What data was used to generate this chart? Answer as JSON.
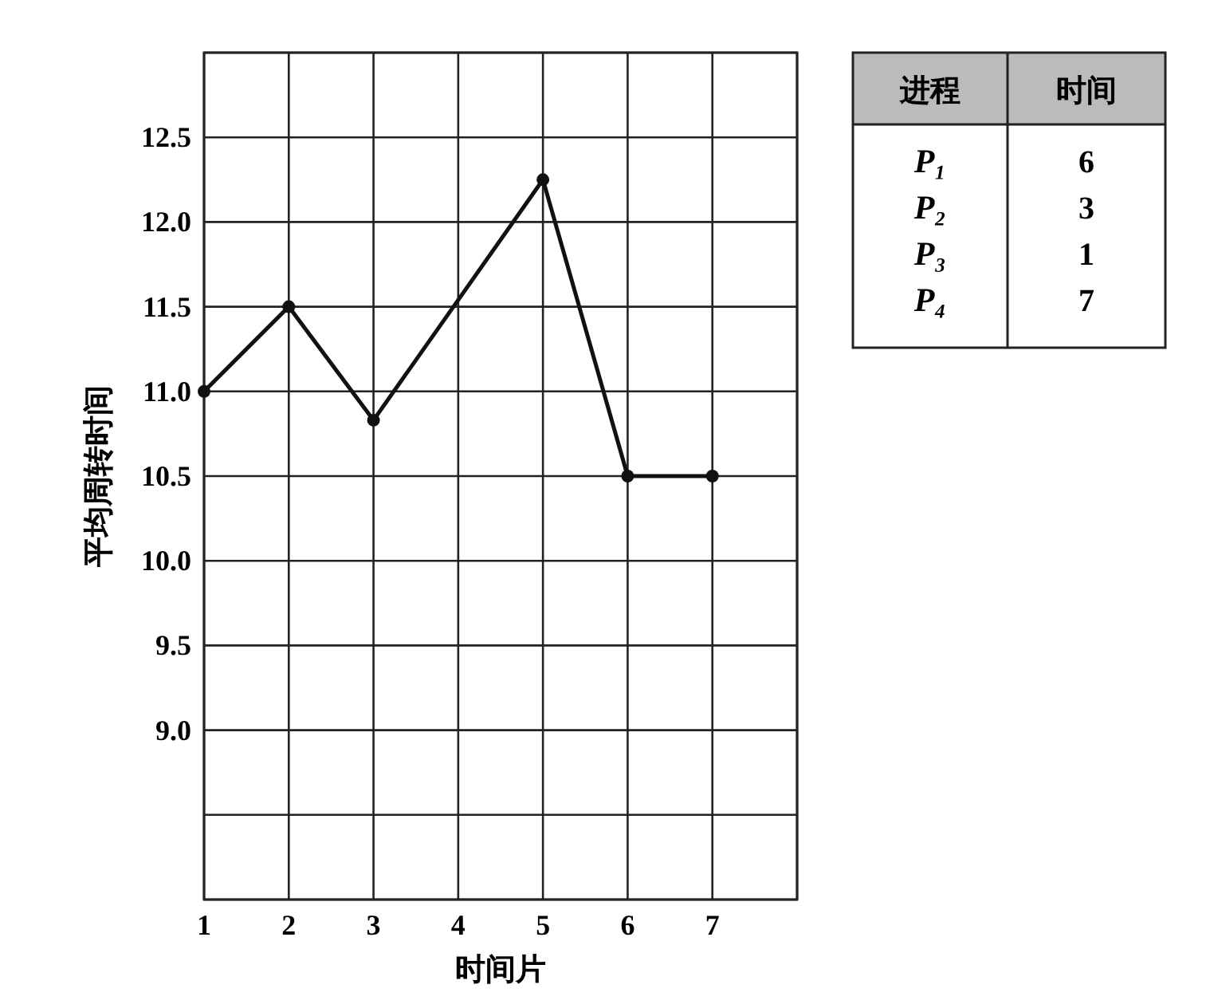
{
  "chart_data": [
    {
      "type": "line",
      "xlabel": "时间片",
      "ylabel": "平均周转时间",
      "x": [
        1,
        2,
        3,
        5,
        6,
        7
      ],
      "series": [
        {
          "color": "#111111",
          "values": [
            11.0,
            11.5,
            10.83,
            12.25,
            10.5,
            10.5
          ]
        }
      ],
      "xlim": [
        1,
        8
      ],
      "xticks": [
        1,
        2,
        3,
        4,
        5,
        6,
        7,
        {
          "value": 8,
          "label": null
        }
      ],
      "ylim": [
        8,
        13
      ],
      "yticks": [
        {
          "value": 8,
          "label": null
        },
        {
          "value": 8.5,
          "label": null
        },
        {
          "value": 9,
          "label": "9.0"
        },
        {
          "value": 9.5,
          "label": "9.5"
        },
        {
          "value": 10,
          "label": "10.0"
        },
        {
          "value": 10.5,
          "label": "10.5"
        },
        {
          "value": 11,
          "label": "11.0"
        },
        {
          "value": 11.5,
          "label": "11.5"
        },
        {
          "value": 12,
          "label": "12.0"
        },
        {
          "value": 12.5,
          "label": "12.5"
        },
        {
          "value": 13,
          "label": null
        }
      ],
      "grid": true,
      "marker": "circle",
      "line_style": "solid"
    },
    {
      "type": "other",
      "annotations": [
        "进程",
        "时间",
        "P₁",
        "6",
        "P₂",
        "3",
        "P₃",
        "1",
        "P₄",
        "7"
      ]
    }
  ]
}
